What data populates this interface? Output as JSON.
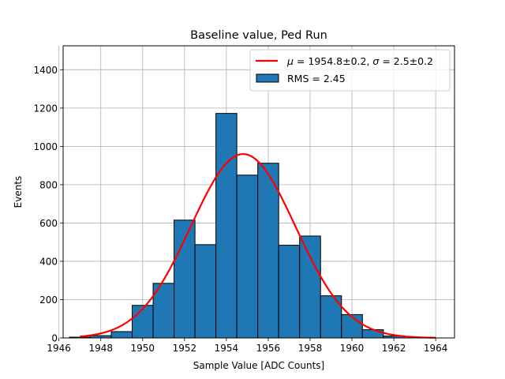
{
  "chart_data": {
    "type": "bar",
    "title": "Baseline value, Ped Run",
    "xlabel": "Sample Value [ADC Counts]",
    "ylabel": "Events",
    "xlim": [
      1946.2,
      1964.9
    ],
    "ylim": [
      0,
      1525
    ],
    "grid": true,
    "xticks": [
      1946,
      1948,
      1950,
      1952,
      1954,
      1956,
      1958,
      1960,
      1962,
      1964
    ],
    "yticks": [
      0,
      200,
      400,
      600,
      800,
      1000,
      1200,
      1400
    ],
    "bin_edges": [
      1946.5,
      1947.5,
      1948.5,
      1949.5,
      1950.5,
      1951.5,
      1952.5,
      1953.5,
      1954.5,
      1955.5,
      1956.5,
      1957.5,
      1958.5,
      1959.5,
      1960.5,
      1961.5,
      1962.5
    ],
    "values": [
      4,
      12,
      33,
      170,
      285,
      615,
      487,
      1172,
      850,
      912,
      484,
      532,
      220,
      122,
      43,
      10
    ],
    "series": [
      {
        "name": "RMS = 2.45",
        "kind": "histogram",
        "color": "#1f77b4",
        "edgecolor": "#000000"
      },
      {
        "name": "μ = 1954.8±0.2, σ = 2.5±0.2",
        "kind": "gaussian-fit",
        "color": "#ff0000",
        "mu": 1954.8,
        "sigma": 2.5,
        "amplitude": 960,
        "x_range": [
          1947,
          1964
        ]
      }
    ],
    "legend": {
      "placement": "top-right",
      "entries": [
        {
          "label_prefix": "μ",
          "label_mid": " = 1954.8±0.2, ",
          "label_sigma": "σ",
          "label_suffix": " = 2.5±0.2",
          "marker": "line",
          "color": "#ff0000"
        },
        {
          "label": "RMS = 2.45",
          "marker": "patch",
          "color": "#1f77b4"
        }
      ]
    }
  }
}
